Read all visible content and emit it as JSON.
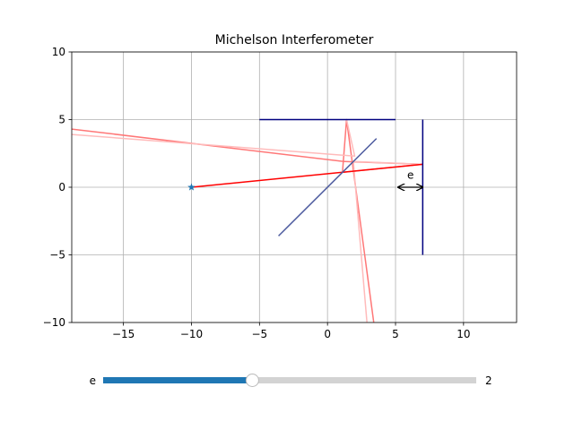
{
  "chart_data": {
    "type": "line",
    "title": "Michelson Interferometer",
    "xlabel": "",
    "ylabel": "",
    "xlim": [
      -18.8,
      13.9
    ],
    "ylim": [
      -10,
      10
    ],
    "xticks": [
      -15,
      -10,
      -5,
      0,
      5,
      10
    ],
    "yticks": [
      -10,
      -5,
      0,
      5,
      10
    ],
    "grid": true,
    "source": {
      "x": -10,
      "y": 0,
      "color": "#1f77b4"
    },
    "beam_splitter": {
      "x": [
        -3.6,
        3.6
      ],
      "y": [
        -3.6,
        3.6
      ],
      "color": "#4c5a9e"
    },
    "mirrors": [
      {
        "name": "mirror-1",
        "x": [
          -5,
          5
        ],
        "y": [
          5,
          5
        ],
        "color": "#000080"
      },
      {
        "name": "mirror-2",
        "x": [
          7,
          7
        ],
        "y": [
          -5,
          5
        ],
        "color": "#000080"
      }
    ],
    "incident_beam": {
      "x": [
        -10,
        7
      ],
      "y": [
        0,
        1.7
      ],
      "color": "#ff0000"
    },
    "series": [
      {
        "x": [
          1.1,
          7,
          1.2,
          -18.8
        ],
        "y": [
          1.1,
          1.7,
          1.9,
          4.3
        ],
        "color": "#ff7777"
      },
      {
        "x": [
          1.1,
          1.4,
          3.4
        ],
        "y": [
          1.1,
          5,
          -10
        ],
        "color": "#ff7777"
      },
      {
        "x": [
          1.4,
          2.0,
          -18.8
        ],
        "y": [
          5,
          2.3,
          3.9
        ],
        "color": "#ffbbbb"
      },
      {
        "x": [
          7,
          1.9,
          2.9
        ],
        "y": [
          1.7,
          1.9,
          -10
        ],
        "color": "#ffbbbb"
      }
    ],
    "annotation": {
      "text": "e",
      "x": [
        5.2,
        7
      ],
      "y": 0,
      "label_x": 6.1,
      "label_y": 0.5
    }
  },
  "slider": {
    "label": "e",
    "value_text": "2",
    "fraction": 0.4
  }
}
